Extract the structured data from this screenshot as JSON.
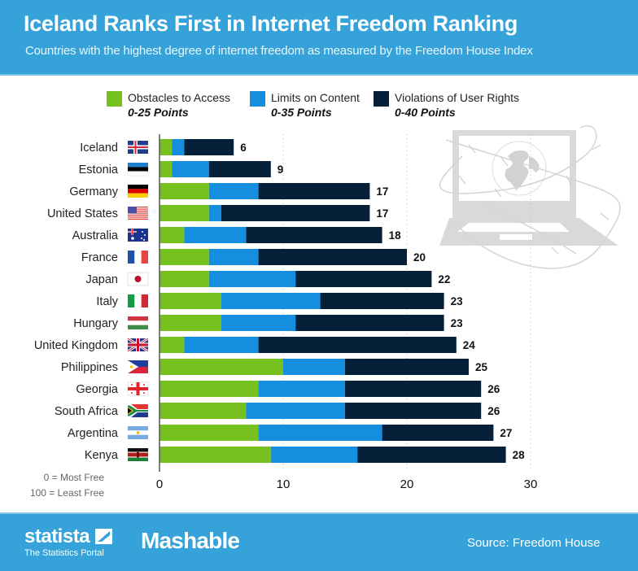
{
  "header": {
    "title": "Iceland Ranks First in Internet Freedom Ranking",
    "subtitle": "Countries with the highest degree of internet freedom as measured by the Freedom House Index"
  },
  "legend": [
    {
      "label": "Obstacles to Access",
      "range": "0-25 Points",
      "color": "#77c11e"
    },
    {
      "label": "Limits on Content",
      "range": "0-35 Points",
      "color": "#168ee0"
    },
    {
      "label": "Violations of User Rights",
      "range": "0-40 Points",
      "color": "#06203a"
    }
  ],
  "notes": {
    "most_free": "0 = Most Free",
    "least_free": "100 = Least Free"
  },
  "footer": {
    "statista": "statista",
    "statista_tagline": "The Statistics Portal",
    "mashable": "Mashable",
    "source": "Source: Freedom House"
  },
  "illustration": {
    "icon": "laptop-globe-barbed-wire-icon"
  },
  "chart_data": {
    "type": "bar",
    "orientation": "horizontal",
    "stacked": true,
    "title": "Iceland Ranks First in Internet Freedom Ranking",
    "subtitle": "Countries with the highest degree of internet freedom as measured by the Freedom House Index",
    "xlabel": "",
    "ylabel": "",
    "xlim": [
      0,
      30
    ],
    "xticks": [
      0,
      10,
      20,
      30
    ],
    "grid": "vertical dotted",
    "legend_position": "top",
    "categories": [
      "Iceland",
      "Estonia",
      "Germany",
      "United States",
      "Australia",
      "France",
      "Japan",
      "Italy",
      "Hungary",
      "United Kingdom",
      "Philippines",
      "Georgia",
      "South Africa",
      "Argentina",
      "Kenya"
    ],
    "flags": [
      "iceland-flag",
      "estonia-flag",
      "germany-flag",
      "usa-flag",
      "australia-flag",
      "france-flag",
      "japan-flag",
      "italy-flag",
      "hungary-flag",
      "uk-flag",
      "philippines-flag",
      "georgia-flag",
      "south-africa-flag",
      "argentina-flag",
      "kenya-flag"
    ],
    "series": [
      {
        "name": "Obstacles to Access",
        "color": "#77c11e",
        "values": [
          1,
          1,
          4,
          4,
          2,
          4,
          4,
          5,
          5,
          2,
          10,
          8,
          7,
          8,
          9
        ]
      },
      {
        "name": "Limits on Content",
        "color": "#168ee0",
        "values": [
          1,
          3,
          4,
          1,
          5,
          4,
          7,
          8,
          6,
          6,
          5,
          7,
          8,
          10,
          7
        ]
      },
      {
        "name": "Violations of User Rights",
        "color": "#06203a",
        "values": [
          4,
          5,
          9,
          12,
          11,
          12,
          11,
          10,
          12,
          16,
          10,
          11,
          11,
          9,
          12
        ]
      }
    ],
    "totals": [
      6,
      9,
      17,
      17,
      18,
      20,
      22,
      23,
      23,
      24,
      25,
      26,
      26,
      27,
      28
    ]
  }
}
